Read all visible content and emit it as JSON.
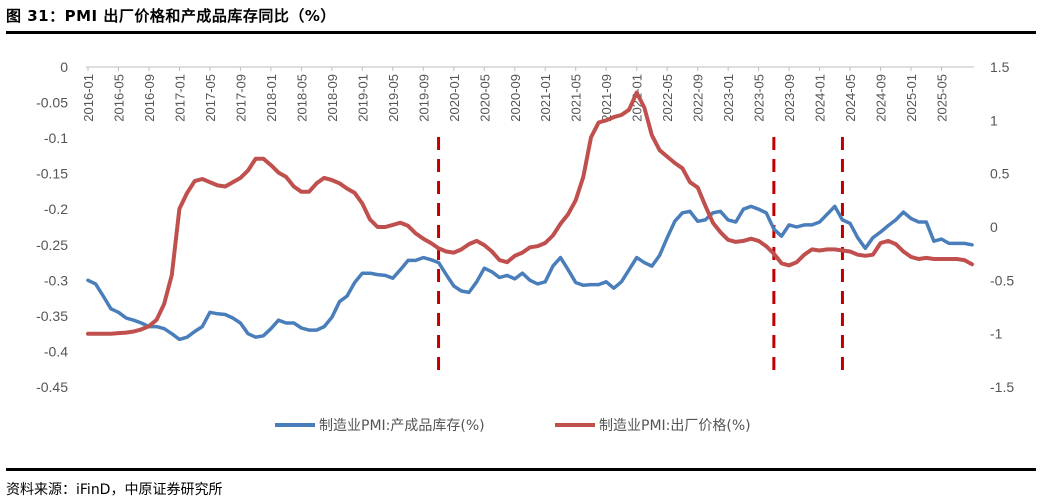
{
  "figure": {
    "title": "图 31：PMI 出厂价格和产成品库存同比（%）",
    "source": "资料来源：iFinD，中原证券研究所"
  },
  "chart_data": {
    "type": "line",
    "x_labels": [
      "2016-01",
      "2016-05",
      "2016-09",
      "2017-01",
      "2017-05",
      "2017-09",
      "2018-01",
      "2018-05",
      "2018-09",
      "2019-01",
      "2019-05",
      "2019-09",
      "2020-01",
      "2020-05",
      "2020-09",
      "2021-01",
      "2021-05",
      "2021-09",
      "2022-01",
      "2022-05",
      "2022-09",
      "2023-01",
      "2023-05",
      "2023-09",
      "2024-01",
      "2024-05",
      "2024-09",
      "2025-01",
      "2025-05"
    ],
    "left_axis": {
      "min": -0.45,
      "max": 0,
      "ticks": [
        "0",
        "-0.05",
        "-0.1",
        "-0.15",
        "-0.2",
        "-0.25",
        "-0.3",
        "-0.35",
        "-0.4",
        "-0.45"
      ]
    },
    "right_axis": {
      "min": -1.5,
      "max": 1.5,
      "ticks": [
        "1.5",
        "1",
        "0.5",
        "0",
        "-0.5",
        "-1",
        "-1.5"
      ]
    },
    "vertical_markers": [
      "2019-11",
      "2023-07",
      "2024-04"
    ],
    "grid": false,
    "legend_position": "bottom",
    "colors": {
      "inventory": "#4a7ebb",
      "price": "#c0504d",
      "marker": "#c00000",
      "axis": "#bfbfbf"
    },
    "series": [
      {
        "name": "制造业PMI:产成品库存(%)",
        "axis": "left",
        "key": "inventory",
        "values": [
          -0.3,
          -0.305,
          -0.322,
          -0.34,
          -0.345,
          -0.353,
          -0.356,
          -0.36,
          -0.365,
          -0.365,
          -0.368,
          -0.375,
          -0.383,
          -0.38,
          -0.372,
          -0.365,
          -0.345,
          -0.347,
          -0.348,
          -0.353,
          -0.36,
          -0.375,
          -0.38,
          -0.378,
          -0.368,
          -0.356,
          -0.36,
          -0.36,
          -0.367,
          -0.37,
          -0.37,
          -0.365,
          -0.352,
          -0.33,
          -0.322,
          -0.303,
          -0.29,
          -0.29,
          -0.292,
          -0.293,
          -0.297,
          -0.285,
          -0.272,
          -0.272,
          -0.268,
          -0.271,
          -0.275,
          -0.292,
          -0.308,
          -0.315,
          -0.317,
          -0.302,
          -0.283,
          -0.288,
          -0.296,
          -0.293,
          -0.298,
          -0.29,
          -0.3,
          -0.305,
          -0.302,
          -0.28,
          -0.268,
          -0.285,
          -0.303,
          -0.307,
          -0.306,
          -0.306,
          -0.302,
          -0.311,
          -0.302,
          -0.285,
          -0.268,
          -0.275,
          -0.28,
          -0.265,
          -0.24,
          -0.217,
          -0.205,
          -0.203,
          -0.217,
          -0.215,
          -0.205,
          -0.203,
          -0.215,
          -0.218,
          -0.2,
          -0.196,
          -0.2,
          -0.205,
          -0.228,
          -0.238,
          -0.222,
          -0.225,
          -0.222,
          -0.222,
          -0.218,
          -0.207,
          -0.196,
          -0.215,
          -0.22,
          -0.24,
          -0.255,
          -0.24,
          -0.232,
          -0.223,
          -0.215,
          -0.204,
          -0.213,
          -0.218,
          -0.218,
          -0.245,
          -0.242,
          -0.248,
          -0.248,
          -0.248,
          -0.25
        ]
      },
      {
        "name": "制造业PMI:出厂价格(%)",
        "axis": "right",
        "key": "price",
        "values": [
          -1.0,
          -1.0,
          -1.0,
          -1.0,
          -0.995,
          -0.99,
          -0.98,
          -0.96,
          -0.93,
          -0.87,
          -0.72,
          -0.45,
          0.17,
          0.32,
          0.43,
          0.45,
          0.42,
          0.39,
          0.38,
          0.42,
          0.46,
          0.53,
          0.64,
          0.64,
          0.58,
          0.51,
          0.47,
          0.38,
          0.33,
          0.33,
          0.41,
          0.46,
          0.44,
          0.41,
          0.36,
          0.32,
          0.22,
          0.07,
          0.0,
          0.0,
          0.02,
          0.04,
          0.01,
          -0.06,
          -0.11,
          -0.15,
          -0.2,
          -0.23,
          -0.24,
          -0.21,
          -0.16,
          -0.13,
          -0.17,
          -0.23,
          -0.31,
          -0.33,
          -0.27,
          -0.24,
          -0.19,
          -0.18,
          -0.15,
          -0.08,
          0.03,
          0.12,
          0.25,
          0.47,
          0.84,
          0.98,
          1.0,
          1.03,
          1.05,
          1.1,
          1.26,
          1.12,
          0.86,
          0.72,
          0.66,
          0.6,
          0.55,
          0.42,
          0.37,
          0.2,
          0.04,
          -0.05,
          -0.12,
          -0.14,
          -0.13,
          -0.11,
          -0.13,
          -0.18,
          -0.25,
          -0.34,
          -0.36,
          -0.33,
          -0.26,
          -0.21,
          -0.22,
          -0.21,
          -0.21,
          -0.22,
          -0.23,
          -0.26,
          -0.27,
          -0.26,
          -0.15,
          -0.13,
          -0.16,
          -0.23,
          -0.28,
          -0.3,
          -0.29,
          -0.3,
          -0.3,
          -0.3,
          -0.3,
          -0.31,
          -0.35
        ]
      }
    ]
  }
}
